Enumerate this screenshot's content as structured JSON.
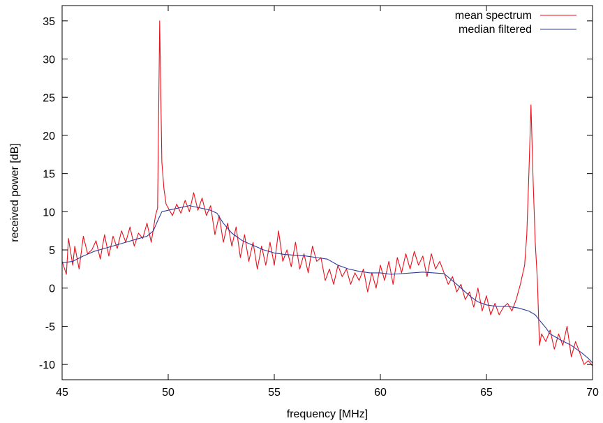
{
  "chart_data": {
    "type": "line",
    "xlabel": "frequency [MHz]",
    "ylabel": "received power [dB]",
    "xlim": [
      45,
      70
    ],
    "ylim": [
      -12,
      37
    ],
    "xticks": [
      45,
      50,
      55,
      60,
      65,
      70
    ],
    "yticks": [
      -10,
      -5,
      0,
      5,
      10,
      15,
      20,
      25,
      30,
      35
    ],
    "grid": false,
    "legend_position": "top-right",
    "series": [
      {
        "name": "mean spectrum",
        "color": "#e8111b",
        "x": [
          45.0,
          45.2,
          45.3,
          45.5,
          45.6,
          45.8,
          46.0,
          46.2,
          46.4,
          46.6,
          46.8,
          47.0,
          47.2,
          47.4,
          47.6,
          47.8,
          48.0,
          48.2,
          48.4,
          48.6,
          48.8,
          49.0,
          49.2,
          49.4,
          49.5,
          49.6,
          49.7,
          49.8,
          49.9,
          50.0,
          50.2,
          50.4,
          50.6,
          50.8,
          51.0,
          51.2,
          51.4,
          51.6,
          51.8,
          52.0,
          52.2,
          52.4,
          52.6,
          52.8,
          53.0,
          53.2,
          53.4,
          53.6,
          53.8,
          54.0,
          54.2,
          54.4,
          54.6,
          54.8,
          55.0,
          55.2,
          55.4,
          55.6,
          55.8,
          56.0,
          56.2,
          56.4,
          56.6,
          56.8,
          57.0,
          57.2,
          57.4,
          57.6,
          57.8,
          58.0,
          58.2,
          58.4,
          58.6,
          58.8,
          59.0,
          59.2,
          59.4,
          59.6,
          59.8,
          60.0,
          60.2,
          60.4,
          60.6,
          60.8,
          61.0,
          61.2,
          61.4,
          61.6,
          61.8,
          62.0,
          62.2,
          62.4,
          62.6,
          62.8,
          63.0,
          63.2,
          63.4,
          63.6,
          63.8,
          64.0,
          64.2,
          64.4,
          64.6,
          64.8,
          65.0,
          65.2,
          65.4,
          65.6,
          65.8,
          66.0,
          66.2,
          66.4,
          66.6,
          66.8,
          66.9,
          67.0,
          67.1,
          67.2,
          67.3,
          67.4,
          67.5,
          67.6,
          67.8,
          68.0,
          68.2,
          68.4,
          68.6,
          68.8,
          69.0,
          69.2,
          69.4,
          69.6,
          69.8,
          70.0
        ],
        "y": [
          3.5,
          1.8,
          6.5,
          3.0,
          5.5,
          2.5,
          6.8,
          4.5,
          5.0,
          6.2,
          3.8,
          7.0,
          4.2,
          6.8,
          5.2,
          7.5,
          6.0,
          8.0,
          5.5,
          7.2,
          6.5,
          8.5,
          6.0,
          9.5,
          10.5,
          35.0,
          16.5,
          13.0,
          11.0,
          10.5,
          9.5,
          11.0,
          9.8,
          11.5,
          10.0,
          12.5,
          10.2,
          11.8,
          9.5,
          10.8,
          7.0,
          9.5,
          6.0,
          8.5,
          5.5,
          8.0,
          4.0,
          7.0,
          3.5,
          6.0,
          2.5,
          5.5,
          3.0,
          6.0,
          3.0,
          7.5,
          3.5,
          5.0,
          2.8,
          6.0,
          2.5,
          4.5,
          2.0,
          5.5,
          3.5,
          4.0,
          1.0,
          2.5,
          0.5,
          3.0,
          1.5,
          2.5,
          0.5,
          2.0,
          1.0,
          2.5,
          -0.5,
          2.0,
          0.0,
          3.0,
          1.0,
          3.5,
          0.5,
          4.0,
          2.0,
          4.5,
          2.5,
          4.8,
          3.0,
          4.2,
          1.5,
          4.5,
          2.5,
          3.5,
          2.0,
          0.5,
          1.5,
          -0.5,
          0.5,
          -1.5,
          -0.5,
          -2.5,
          0.0,
          -3.0,
          -1.0,
          -3.5,
          -2.0,
          -3.5,
          -2.5,
          -2.0,
          -3.0,
          -1.5,
          0.5,
          3.0,
          7.0,
          15.0,
          24.0,
          14.0,
          6.0,
          1.0,
          -7.5,
          -6.0,
          -7.0,
          -5.5,
          -8.0,
          -6.0,
          -7.5,
          -5.0,
          -9.0,
          -7.0,
          -8.5,
          -10.0,
          -9.5,
          -10.2
        ]
      },
      {
        "name": "median filtered",
        "color": "#2d3a9c",
        "x": [
          45.0,
          45.5,
          46.0,
          46.5,
          47.0,
          47.5,
          48.0,
          48.5,
          49.0,
          49.3,
          49.5,
          49.7,
          50.0,
          50.5,
          51.0,
          51.5,
          52.0,
          52.3,
          52.6,
          53.0,
          53.5,
          54.0,
          54.5,
          55.0,
          55.5,
          56.0,
          56.5,
          57.0,
          57.5,
          58.0,
          58.5,
          59.0,
          59.5,
          60.0,
          60.5,
          61.0,
          61.5,
          62.0,
          62.5,
          63.0,
          63.3,
          63.6,
          64.0,
          64.3,
          64.6,
          65.0,
          65.5,
          66.0,
          66.5,
          67.0,
          67.3,
          67.5,
          67.8,
          68.0,
          68.5,
          69.0,
          69.5,
          69.8,
          70.0
        ],
        "y": [
          3.3,
          3.5,
          4.2,
          4.8,
          5.2,
          5.6,
          6.0,
          6.4,
          6.8,
          7.5,
          8.8,
          10.0,
          10.2,
          10.5,
          10.8,
          10.5,
          10.2,
          9.8,
          8.5,
          7.2,
          6.2,
          5.6,
          5.0,
          4.6,
          4.4,
          4.3,
          4.2,
          4.0,
          3.8,
          3.0,
          2.5,
          2.2,
          2.0,
          2.0,
          1.8,
          1.9,
          2.0,
          2.1,
          2.0,
          1.9,
          1.2,
          0.5,
          -0.5,
          -1.2,
          -1.8,
          -2.2,
          -2.4,
          -2.4,
          -2.6,
          -3.0,
          -3.5,
          -4.2,
          -5.2,
          -6.0,
          -6.8,
          -7.5,
          -8.5,
          -9.2,
          -9.8
        ]
      }
    ]
  }
}
